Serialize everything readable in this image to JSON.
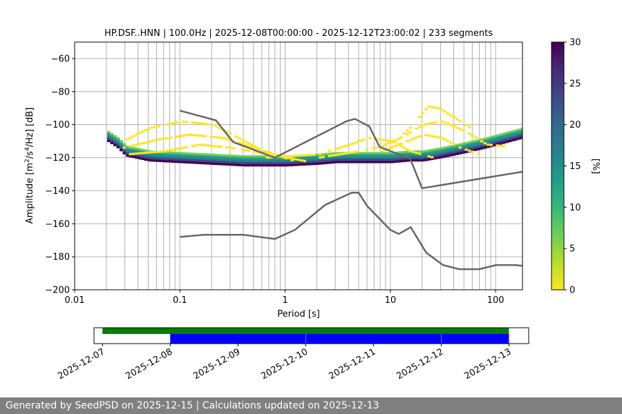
{
  "chart_data": [
    {
      "type": "heatmap",
      "title": "HP.DSF..HNN | 100.0Hz | 2025-12-08T00:00:00 - 2025-12-12T23:00:02 | 233 segments",
      "xlabel": "Period [s]",
      "ylabel_parts": [
        "Amplitude [m",
        "2",
        "/s",
        "4",
        "/Hz] [dB]"
      ],
      "x_scale": "log",
      "xlim": [
        0.01,
        180
      ],
      "ylim": [
        -200,
        -50
      ],
      "x_ticks": [
        {
          "value": 0.01,
          "label": "0.01"
        },
        {
          "value": 0.1,
          "label": "0.1"
        },
        {
          "value": 1,
          "label": "1"
        },
        {
          "value": 10,
          "label": "10"
        },
        {
          "value": 100,
          "label": "100"
        }
      ],
      "y_ticks": [
        {
          "value": -60,
          "label": "−60"
        },
        {
          "value": -80,
          "label": "−80"
        },
        {
          "value": -100,
          "label": "−100"
        },
        {
          "value": -120,
          "label": "−120"
        },
        {
          "value": -140,
          "label": "−140"
        },
        {
          "value": -160,
          "label": "−160"
        },
        {
          "value": -180,
          "label": "−180"
        },
        {
          "value": -200,
          "label": "−200"
        }
      ],
      "grid": true,
      "vertical_grid_periods": [
        0.02,
        0.03,
        0.04,
        0.05,
        0.06,
        0.07,
        0.08,
        0.09,
        0.1,
        0.2,
        0.3,
        0.4,
        0.5,
        0.6,
        0.7,
        0.8,
        0.9,
        1,
        2,
        3,
        4,
        5,
        6,
        7,
        8,
        9,
        10,
        20,
        30,
        40,
        50,
        60,
        70,
        80,
        90,
        100
      ],
      "colorbar": {
        "label": "[%]",
        "range": [
          0,
          30
        ],
        "ticks": [
          "0",
          "5",
          "10",
          "15",
          "20",
          "25",
          "30"
        ],
        "colormap": [
          "#fde725",
          "#b5de2b",
          "#6ece58",
          "#35b779",
          "#1f9e89",
          "#26828e",
          "#31688e",
          "#3e4989",
          "#482878",
          "#440154"
        ]
      },
      "noise_models": [
        {
          "points": [
            [
              0.1,
              -91.5
            ],
            [
              0.22,
              -97.4
            ],
            [
              0.32,
              -110.5
            ],
            [
              0.8,
              -120.0
            ],
            [
              3.8,
              -98.0
            ],
            [
              4.6,
              -96.5
            ],
            [
              6.3,
              -101.0
            ],
            [
              7.9,
              -113.5
            ],
            [
              15.4,
              -120.5
            ],
            [
              20.0,
              -138.5
            ],
            [
              180,
              -128.5
            ]
          ]
        },
        {
          "points": [
            [
              0.1,
              -168.0
            ],
            [
              0.17,
              -166.7
            ],
            [
              0.4,
              -166.7
            ],
            [
              0.8,
              -169.2
            ],
            [
              1.24,
              -163.7
            ],
            [
              2.4,
              -148.6
            ],
            [
              4.3,
              -141.2
            ],
            [
              5.0,
              -141.2
            ],
            [
              6.0,
              -149.2
            ],
            [
              10.0,
              -163.7
            ],
            [
              12.0,
              -166.2
            ],
            [
              15.6,
              -162.1
            ],
            [
              21.9,
              -177.5
            ],
            [
              31.6,
              -185.0
            ],
            [
              45.0,
              -187.5
            ],
            [
              70.0,
              -187.5
            ],
            [
              101,
              -185.0
            ],
            [
              154,
              -185.0
            ],
            [
              180,
              -185.5
            ]
          ]
        }
      ],
      "modal_band": [
        [
          0.019,
          -108
        ],
        [
          0.025,
          -113
        ],
        [
          0.03,
          -118
        ],
        [
          0.05,
          -121
        ],
        [
          0.1,
          -122
        ],
        [
          0.2,
          -123
        ],
        [
          0.4,
          -124
        ],
        [
          1,
          -124
        ],
        [
          2,
          -123
        ],
        [
          3,
          -122
        ],
        [
          5,
          -122
        ],
        [
          7,
          -122
        ],
        [
          10,
          -122
        ],
        [
          15,
          -121
        ],
        [
          20,
          -121
        ],
        [
          30,
          -119
        ],
        [
          50,
          -116
        ],
        [
          80,
          -113
        ],
        [
          120,
          -110
        ],
        [
          180,
          -107
        ]
      ],
      "noise_ridges": [
        [
          [
            0.028,
            -110
          ],
          [
            0.05,
            -102
          ],
          [
            0.1,
            -98
          ],
          [
            0.2,
            -100
          ],
          [
            0.35,
            -108
          ],
          [
            0.6,
            -116
          ],
          [
            1.2,
            -122
          ]
        ],
        [
          [
            0.028,
            -114
          ],
          [
            0.06,
            -109
          ],
          [
            0.12,
            -106
          ],
          [
            0.25,
            -108
          ],
          [
            0.5,
            -114
          ],
          [
            1.0,
            -120
          ]
        ],
        [
          [
            0.03,
            -118
          ],
          [
            0.07,
            -116
          ],
          [
            0.15,
            -112
          ],
          [
            0.3,
            -114
          ],
          [
            0.7,
            -118
          ],
          [
            1.5,
            -122
          ]
        ],
        [
          [
            0.6,
            -120
          ],
          [
            2,
            -118
          ],
          [
            4,
            -112
          ],
          [
            6,
            -108
          ],
          [
            10,
            -110
          ],
          [
            15,
            -116
          ],
          [
            25,
            -120
          ]
        ],
        [
          [
            2,
            -120
          ],
          [
            5,
            -116
          ],
          [
            8,
            -113
          ],
          [
            12,
            -108
          ],
          [
            20,
            -100
          ],
          [
            30,
            -98
          ],
          [
            50,
            -104
          ],
          [
            80,
            -112
          ],
          [
            120,
            -113
          ]
        ],
        [
          [
            10,
            -112
          ],
          [
            16,
            -100
          ],
          [
            22,
            -89
          ],
          [
            28,
            -90
          ],
          [
            40,
            -96
          ],
          [
            60,
            -103
          ]
        ],
        [
          [
            8,
            -116
          ],
          [
            14,
            -110
          ],
          [
            20,
            -106
          ],
          [
            30,
            -108
          ],
          [
            45,
            -114
          ],
          [
            70,
            -118
          ]
        ]
      ]
    },
    {
      "type": "timeline",
      "x_ticks": [
        "2025-12-07",
        "2025-12-08",
        "2025-12-09",
        "2025-12-10",
        "2025-12-11",
        "2025-12-12",
        "2025-12-13"
      ],
      "xlim": [
        "2025-12-06T21:00",
        "2025-12-13T07:00"
      ],
      "series": [
        {
          "color": "#008000",
          "intervals": [
            [
              "2025-12-07T00:00",
              "2025-12-13T00:00"
            ]
          ]
        },
        {
          "color": "#0000ff",
          "intervals": [
            [
              "2025-12-08T00:00",
              "2025-12-09T23:55"
            ],
            [
              "2025-12-10T00:02",
              "2025-12-11T23:55"
            ],
            [
              "2025-12-12T00:02",
              "2025-12-13T00:00"
            ]
          ]
        }
      ]
    }
  ],
  "footer": {
    "text": "Generated by SeedPSD on 2025-12-15 | Calculations updated on 2025-12-13"
  }
}
